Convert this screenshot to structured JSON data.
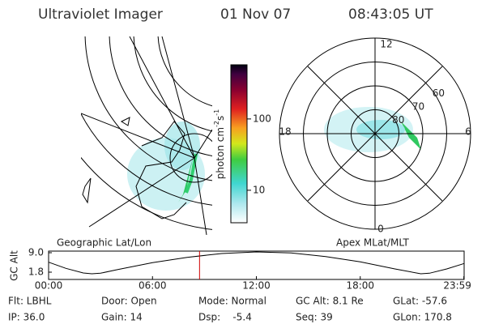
{
  "header": {
    "instrument": "Ultraviolet Imager",
    "date": "01 Nov 07",
    "time": "08:43:05 UT"
  },
  "colorbar": {
    "label": [
      "photon cm",
      "-2",
      "s",
      "-1"
    ],
    "ticks": [
      10,
      100
    ],
    "lim": [
      3.5,
      575
    ]
  },
  "polar": {
    "labels": {
      "top": "12",
      "left": "18",
      "right": "6",
      "bottom": "0"
    },
    "lat_rings": [
      {
        "value": 80,
        "label": "80"
      },
      {
        "value": 70,
        "label": "70"
      },
      {
        "value": 60,
        "label": "60"
      }
    ],
    "lat_lim": [
      90,
      50
    ]
  },
  "panel_labels": {
    "left": "Geographic Lat/Lon",
    "right": "Apex MLat/MLT"
  },
  "altitude_plot": {
    "y_label": "GC Alt",
    "yticks": [
      {
        "value": 9,
        "label": "9.0"
      },
      {
        "value": 1.8,
        "label": "1.8"
      }
    ],
    "xticks": [
      {
        "value": 0,
        "label": "00:00"
      },
      {
        "value": 6,
        "label": "06:00"
      },
      {
        "value": 12,
        "label": "12:00"
      },
      {
        "value": 18,
        "label": "18:00"
      },
      {
        "value": 23.983,
        "label": "23:59"
      }
    ],
    "xlim": [
      0,
      24
    ],
    "ylim": [
      -0.9,
      9.6
    ],
    "hours": [
      0,
      1,
      2,
      2.5,
      3,
      4,
      6,
      8,
      10,
      12,
      14,
      16,
      18,
      20,
      21.5,
      22,
      23,
      24
    ],
    "values": [
      5.5,
      3.2,
      1.5,
      1.2,
      1.4,
      2.8,
      5.3,
      7.3,
      8.7,
      9.3,
      8.9,
      7.6,
      5.6,
      3.0,
      1.2,
      1.4,
      3.0,
      5.0
    ]
  },
  "info": {
    "row1": [
      "Flt: LBHL",
      "Door: Open",
      "Mode: Normal",
      "GC Alt: 8.1 Re",
      "GLat: -57.6"
    ],
    "row2": [
      "IP: 36.0",
      "Gain: 14",
      "Dsp:    -5.4",
      "Seq: 39",
      "GLon: 170.8"
    ]
  }
}
